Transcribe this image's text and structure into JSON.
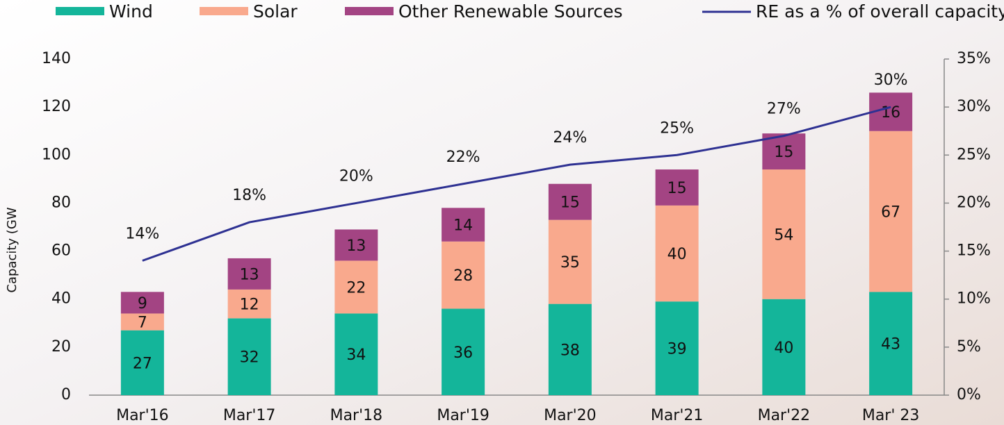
{
  "chart_data": {
    "type": "bar",
    "stacked": true,
    "y_label": "Capacity (GW",
    "categories": [
      "Mar'16",
      "Mar'17",
      "Mar'18",
      "Mar'19",
      "Mar'20",
      "Mar'21",
      "Mar'22",
      "Mar' 23"
    ],
    "series": [
      {
        "name": "Wind",
        "color": "#14b59a",
        "values": [
          27,
          32,
          34,
          36,
          38,
          39,
          40,
          43
        ]
      },
      {
        "name": "Solar",
        "color": "#f9a98d",
        "values": [
          7,
          12,
          22,
          28,
          35,
          40,
          54,
          67
        ]
      },
      {
        "name": "Other Renewable Sources",
        "color": "#a34483",
        "values": [
          9,
          13,
          13,
          14,
          15,
          15,
          15,
          16
        ]
      },
      {
        "name": "RE as a % of overall capacity",
        "type": "line",
        "axis": "y2",
        "color": "#2e3192",
        "values": [
          14,
          18,
          20,
          22,
          24,
          25,
          27,
          30
        ],
        "value_labels": [
          "14%",
          "18%",
          "20%",
          "22%",
          "24%",
          "25%",
          "27%",
          "30%"
        ]
      }
    ],
    "ylim": [
      0,
      140
    ],
    "yticks": [
      0,
      20,
      40,
      60,
      80,
      100,
      120,
      140
    ],
    "y2lim": [
      0,
      35
    ],
    "y2ticks": [
      {
        "value": 0,
        "label": "0%"
      },
      {
        "value": 5,
        "label": "5%"
      },
      {
        "value": 10,
        "label": "10%"
      },
      {
        "value": 15,
        "label": "15%"
      },
      {
        "value": 20,
        "label": "20%"
      },
      {
        "value": 25,
        "label": "25%"
      },
      {
        "value": 30,
        "label": "30%"
      },
      {
        "value": 35,
        "label": "35%"
      }
    ],
    "grid": false,
    "legend": "top"
  }
}
